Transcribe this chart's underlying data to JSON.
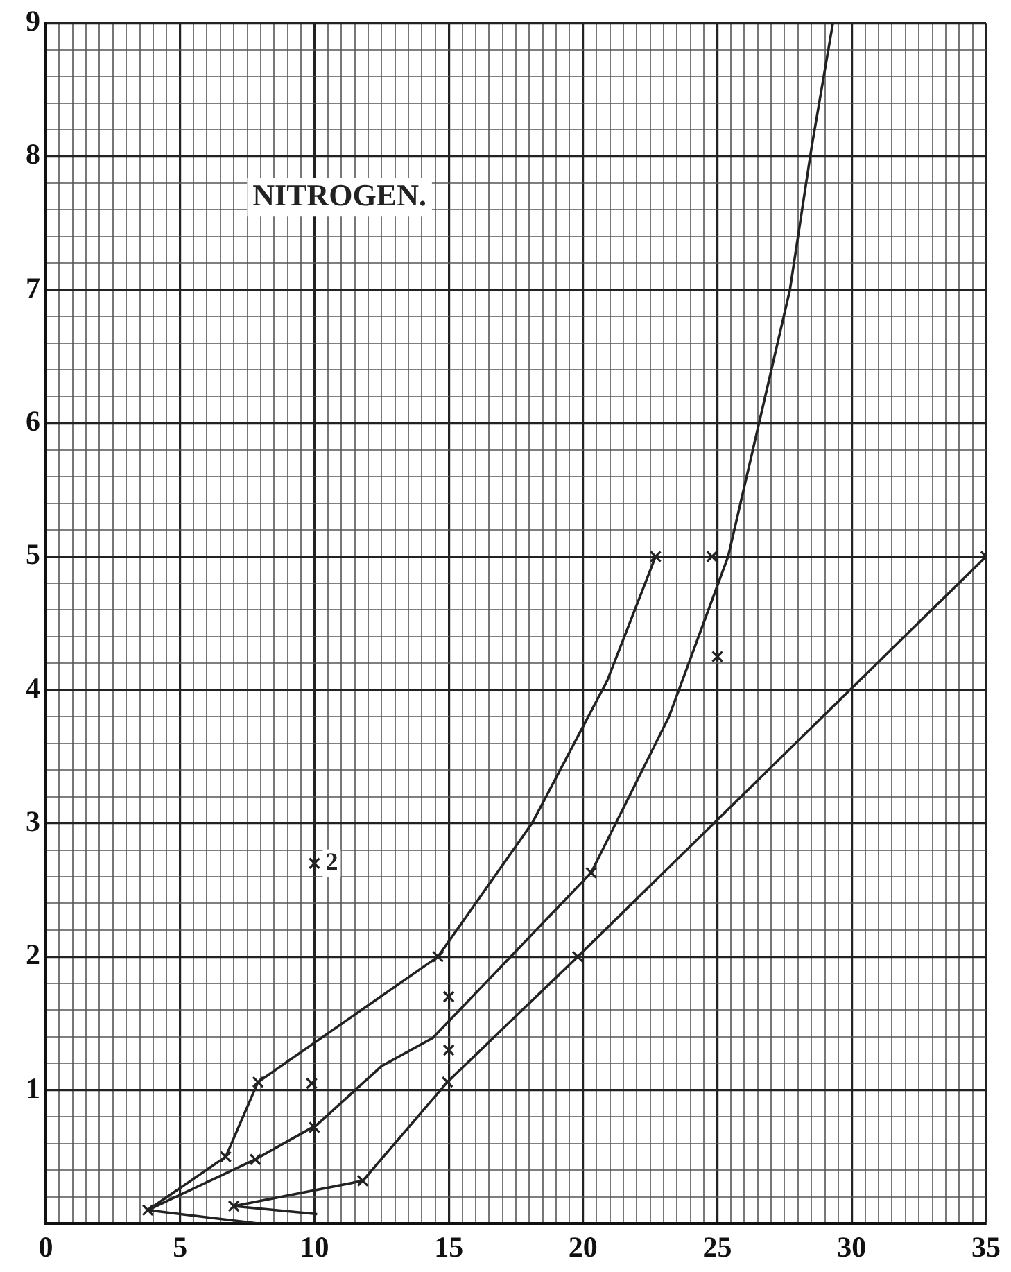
{
  "chart_data": {
    "type": "line",
    "title": "NITROGEN.",
    "xlim": [
      0,
      35
    ],
    "ylim": [
      0,
      9
    ],
    "grid": true,
    "legend": false,
    "marker": "none",
    "line_style": "solid",
    "xticks": [
      0,
      {
        "value": 0.5,
        "label": null
      },
      {
        "value": 1,
        "label": null
      },
      {
        "value": 1.5,
        "label": null
      },
      {
        "value": 2,
        "label": null
      },
      {
        "value": 2.5,
        "label": null
      },
      {
        "value": 3,
        "label": null
      },
      {
        "value": 3.5,
        "label": null
      },
      {
        "value": 4,
        "label": null
      },
      {
        "value": 4.5,
        "label": null
      },
      5,
      {
        "value": 5.5,
        "label": null
      },
      {
        "value": 6,
        "label": null
      },
      {
        "value": 6.5,
        "label": null
      },
      {
        "value": 7,
        "label": null
      },
      {
        "value": 7.5,
        "label": null
      },
      {
        "value": 8,
        "label": null
      },
      {
        "value": 8.5,
        "label": null
      },
      {
        "value": 9,
        "label": null
      },
      {
        "value": 9.5,
        "label": null
      },
      10,
      {
        "value": 10.5,
        "label": null
      },
      {
        "value": 11,
        "label": null
      },
      {
        "value": 11.5,
        "label": null
      },
      {
        "value": 12,
        "label": null
      },
      {
        "value": 12.5,
        "label": null
      },
      {
        "value": 13,
        "label": null
      },
      {
        "value": 13.5,
        "label": null
      },
      {
        "value": 14,
        "label": null
      },
      {
        "value": 14.5,
        "label": null
      },
      15,
      {
        "value": 15.5,
        "label": null
      },
      {
        "value": 16,
        "label": null
      },
      {
        "value": 16.5,
        "label": null
      },
      {
        "value": 17,
        "label": null
      },
      {
        "value": 17.5,
        "label": null
      },
      {
        "value": 18,
        "label": null
      },
      {
        "value": 18.5,
        "label": null
      },
      {
        "value": 19,
        "label": null
      },
      {
        "value": 19.5,
        "label": null
      },
      20,
      {
        "value": 20.5,
        "label": null
      },
      {
        "value": 21,
        "label": null
      },
      {
        "value": 21.5,
        "label": null
      },
      {
        "value": 22,
        "label": null
      },
      {
        "value": 22.5,
        "label": null
      },
      {
        "value": 23,
        "label": null
      },
      {
        "value": 23.5,
        "label": null
      },
      {
        "value": 24,
        "label": null
      },
      {
        "value": 24.5,
        "label": null
      },
      25,
      {
        "value": 25.5,
        "label": null
      },
      {
        "value": 26,
        "label": null
      },
      {
        "value": 26.5,
        "label": null
      },
      {
        "value": 27,
        "label": null
      },
      {
        "value": 27.5,
        "label": null
      },
      {
        "value": 28,
        "label": null
      },
      {
        "value": 28.5,
        "label": null
      },
      {
        "value": 29,
        "label": null
      },
      {
        "value": 29.5,
        "label": null
      },
      30,
      {
        "value": 30.5,
        "label": null
      },
      {
        "value": 31,
        "label": null
      },
      {
        "value": 31.5,
        "label": null
      },
      {
        "value": 32,
        "label": null
      },
      {
        "value": 32.5,
        "label": null
      },
      {
        "value": 33,
        "label": null
      },
      {
        "value": 33.5,
        "label": null
      },
      {
        "value": 34,
        "label": null
      },
      {
        "value": 34.5,
        "label": null
      },
      35
    ],
    "yticks": [
      {
        "value": 0,
        "label": null
      },
      {
        "value": 0.2,
        "label": null
      },
      {
        "value": 0.4,
        "label": null
      },
      {
        "value": 0.6,
        "label": null
      },
      {
        "value": 0.8,
        "label": null
      },
      1,
      {
        "value": 1.2,
        "label": null
      },
      {
        "value": 1.4,
        "label": null
      },
      {
        "value": 1.6,
        "label": null
      },
      {
        "value": 1.8,
        "label": null
      },
      2,
      {
        "value": 2.2,
        "label": null
      },
      {
        "value": 2.4,
        "label": null
      },
      {
        "value": 2.6,
        "label": null
      },
      {
        "value": 2.8,
        "label": null
      },
      3,
      {
        "value": 3.2,
        "label": null
      },
      {
        "value": 3.4,
        "label": null
      },
      {
        "value": 3.6,
        "label": null
      },
      {
        "value": 3.8,
        "label": null
      },
      4,
      {
        "value": 4.2,
        "label": null
      },
      {
        "value": 4.4,
        "label": null
      },
      {
        "value": 4.6,
        "label": null
      },
      {
        "value": 4.8,
        "label": null
      },
      5,
      {
        "value": 5.2,
        "label": null
      },
      {
        "value": 5.4,
        "label": null
      },
      {
        "value": 5.6,
        "label": null
      },
      {
        "value": 5.8,
        "label": null
      },
      6,
      {
        "value": 6.2,
        "label": null
      },
      {
        "value": 6.4,
        "label": null
      },
      {
        "value": 6.6,
        "label": null
      },
      {
        "value": 6.8,
        "label": null
      },
      7,
      {
        "value": 7.2,
        "label": null
      },
      {
        "value": 7.4,
        "label": null
      },
      {
        "value": 7.6,
        "label": null
      },
      {
        "value": 7.8,
        "label": null
      },
      8,
      {
        "value": 8.2,
        "label": null
      },
      {
        "value": 8.4,
        "label": null
      },
      {
        "value": 8.6,
        "label": null
      },
      {
        "value": 8.8,
        "label": null
      },
      9
    ],
    "series": [
      {
        "color": "#222222",
        "x": [
          3.8,
          6.7,
          7.9,
          14.6,
          18.1,
          20.9,
          22.7
        ],
        "values": [
          0.1,
          0.5,
          1.06,
          2.0,
          3.0,
          4.07,
          5.0
        ]
      },
      {
        "color": "#222222",
        "x": [
          3.8,
          7.8,
          10.1,
          12.5,
          14.4,
          20.3,
          23.2,
          25.4,
          27.7,
          28.5,
          29.3
        ],
        "values": [
          0.1,
          0.48,
          0.74,
          1.18,
          1.39,
          2.63,
          3.8,
          5.0,
          7.0,
          8.06,
          9.0
        ]
      },
      {
        "color": "#222222",
        "x": [
          10.1,
          7.0,
          11.8,
          14.95,
          19.8,
          35
        ],
        "values": [
          0.07,
          0.13,
          0.32,
          1.06,
          2.0,
          5.0
        ]
      },
      {
        "color": "#222222",
        "x": [
          3.8,
          7.9
        ],
        "values": [
          0.1,
          0.0
        ]
      },
      {
        "type": "scatter",
        "marker": "cross",
        "color": "#222222",
        "x": [
          3.8,
          6.7,
          7.9,
          7.8,
          9.9,
          10,
          14.6,
          15,
          15,
          14.95,
          11.8,
          7.0,
          20.3,
          19.8,
          22.7,
          24.8,
          25,
          10,
          35
        ],
        "values": [
          0.1,
          0.5,
          1.06,
          0.48,
          1.05,
          0.72,
          2.0,
          1.7,
          1.3,
          1.06,
          0.32,
          0.13,
          2.63,
          2.0,
          5.0,
          5.0,
          4.25,
          2.7,
          5.0
        ]
      }
    ],
    "annotations": [
      {
        "text": "2",
        "x": 10,
        "y": 2.7
      }
    ]
  }
}
